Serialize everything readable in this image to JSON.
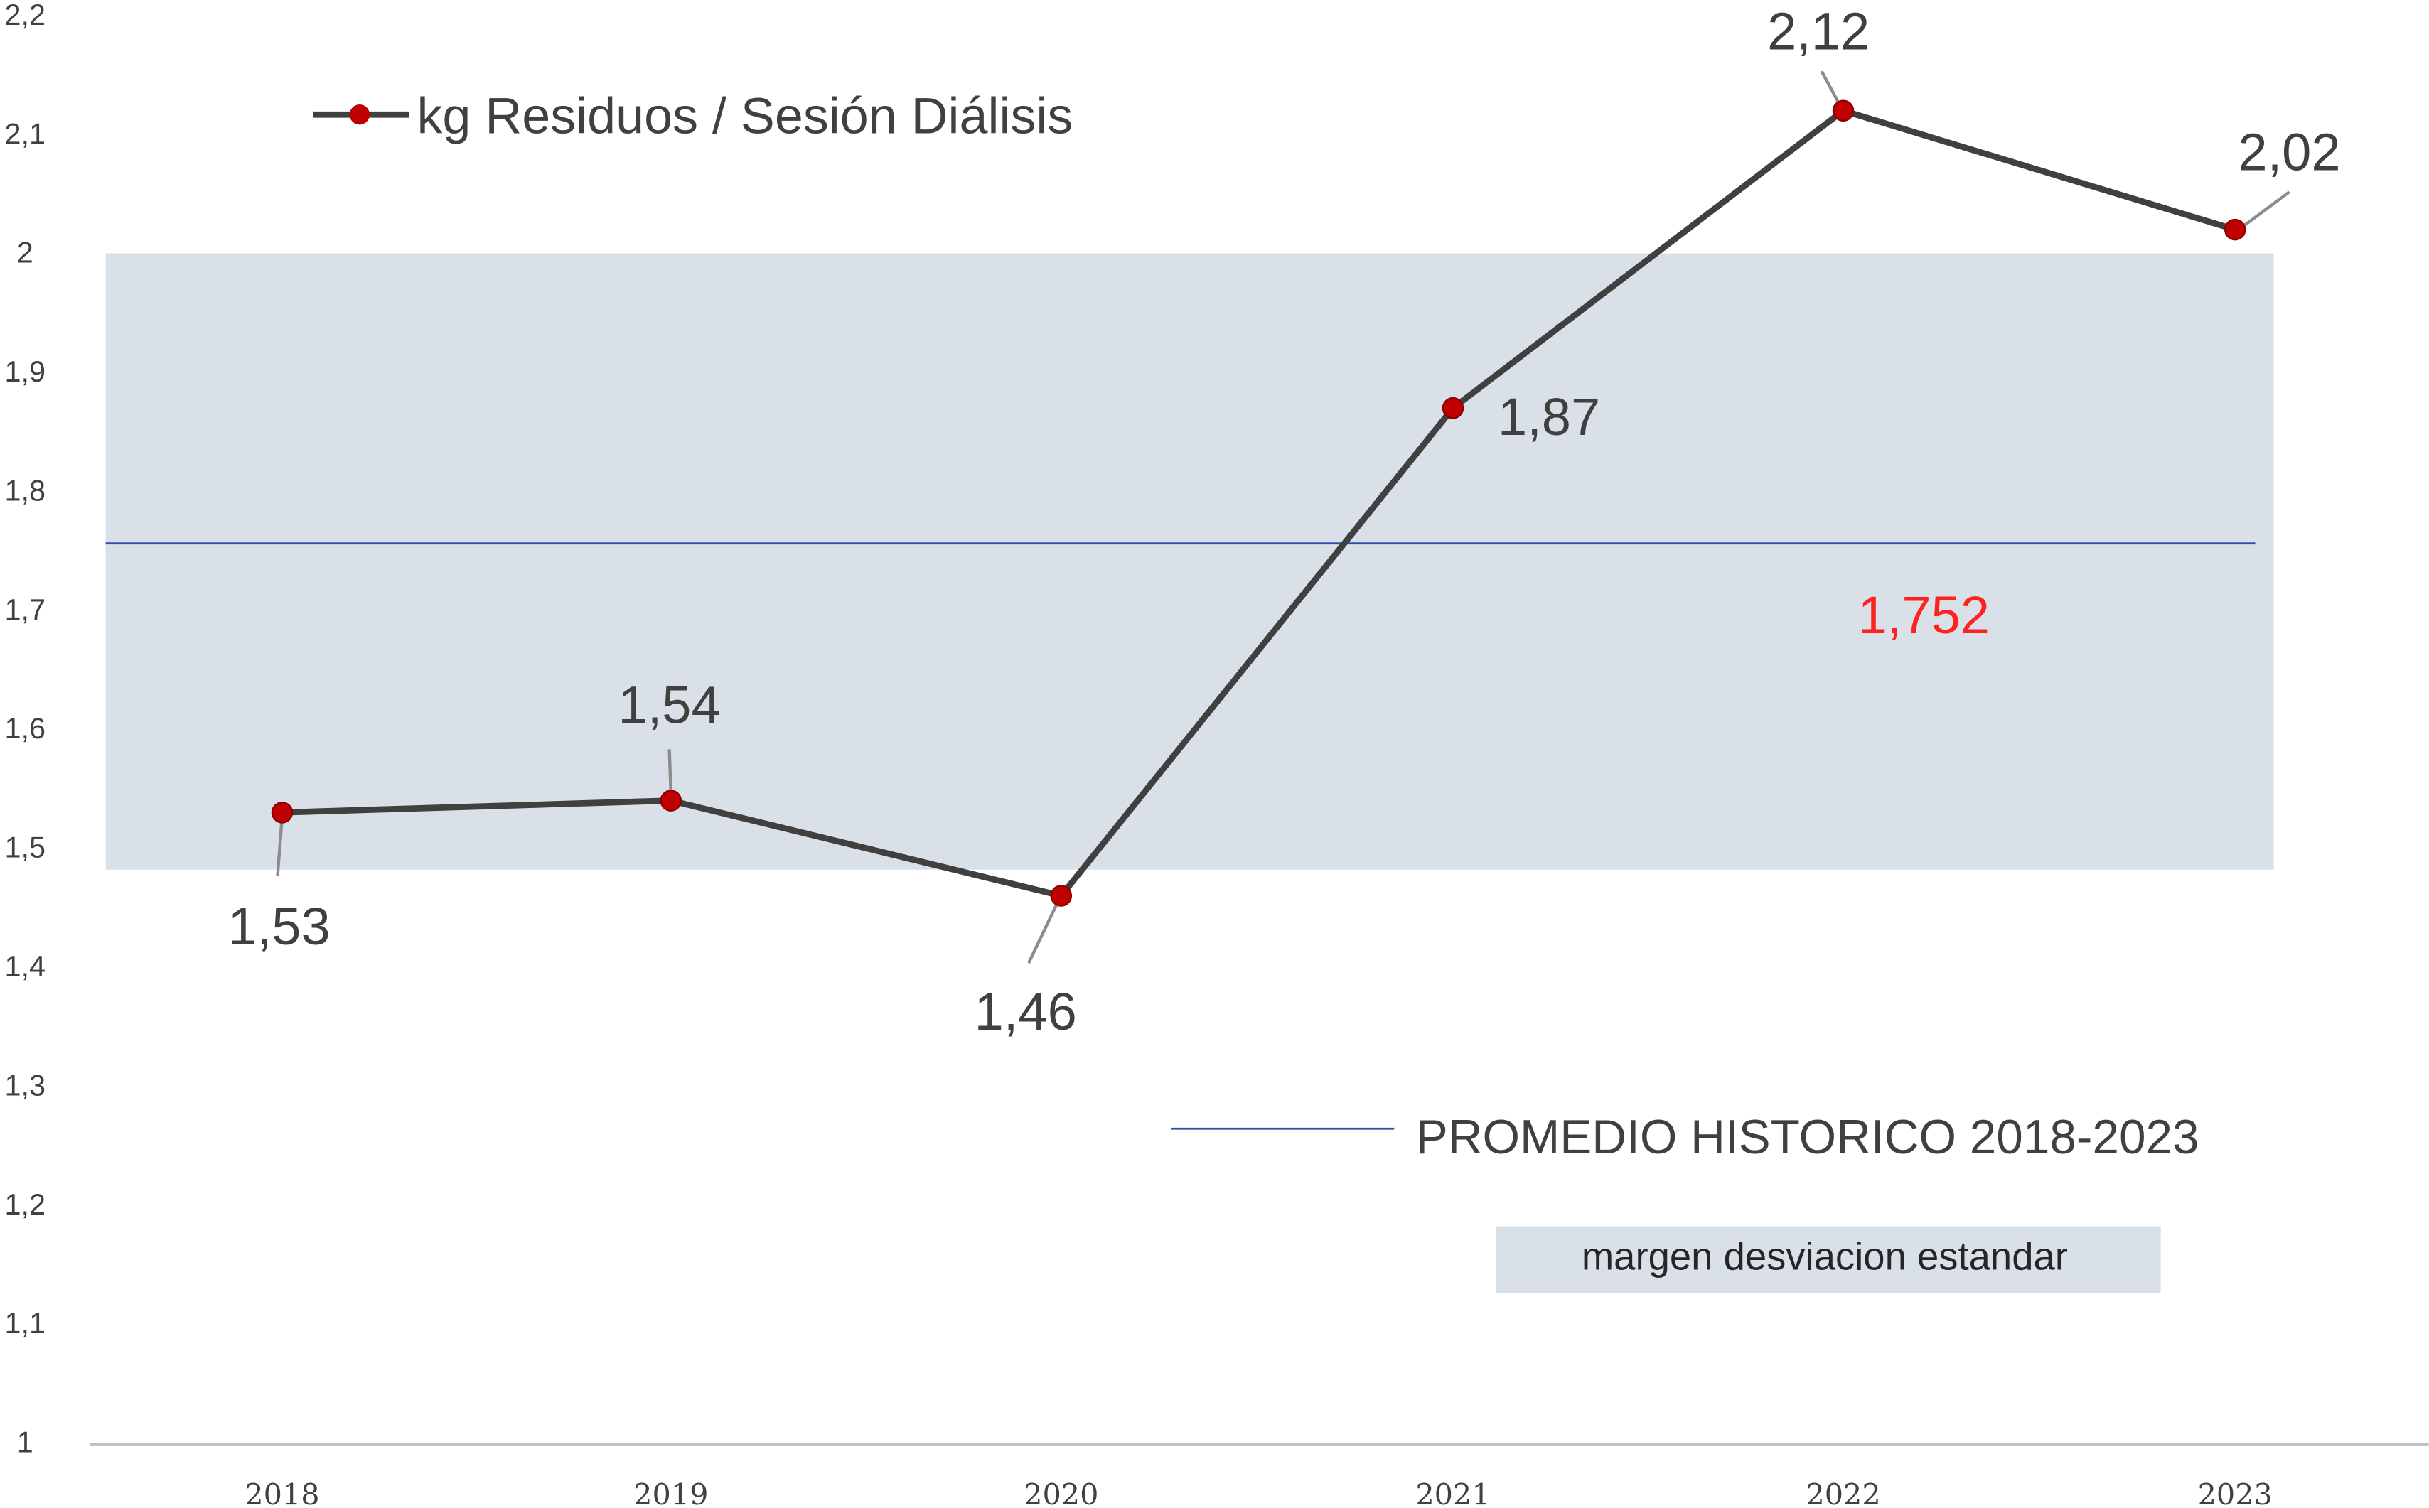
{
  "chart_data": {
    "type": "line",
    "title": "",
    "xlabel": "",
    "ylabel": "",
    "categories": [
      "2018",
      "2019",
      "2020",
      "2021",
      "2022",
      "2023"
    ],
    "series": [
      {
        "name": "kg Residuos / Sesión Diálisis",
        "values": [
          1.53,
          1.54,
          1.46,
          1.87,
          2.12,
          2.02
        ],
        "labels": [
          "1,53",
          "1,54",
          "1,46",
          "1,87",
          "2,12",
          "2,02"
        ],
        "line_color": "#404040",
        "marker_color": "#c00000"
      }
    ],
    "reference_line": {
      "name": "PROMEDIO HISTORICO 2018-2023",
      "value": 1.752,
      "label": "1,752",
      "color": "#2e4fa8",
      "label_color": "#ff2020"
    },
    "band": {
      "name": "margen desviacion estandar",
      "from": 1.482,
      "to": 2.0,
      "color": "#d9e0e8"
    },
    "ylim": [
      1,
      2.2
    ],
    "yticks": [
      1,
      1.1,
      1.2,
      1.3,
      1.4,
      1.5,
      1.6,
      1.7,
      1.8,
      1.9,
      2,
      2.1,
      2.2
    ],
    "ytick_labels": [
      "1",
      "1,1",
      "1,2",
      "1,3",
      "1,4",
      "1,5",
      "1,6",
      "1,7",
      "1,8",
      "1,9",
      "2",
      "2,1",
      "2,2"
    ],
    "grid": false,
    "legend_placement": "top-left"
  }
}
